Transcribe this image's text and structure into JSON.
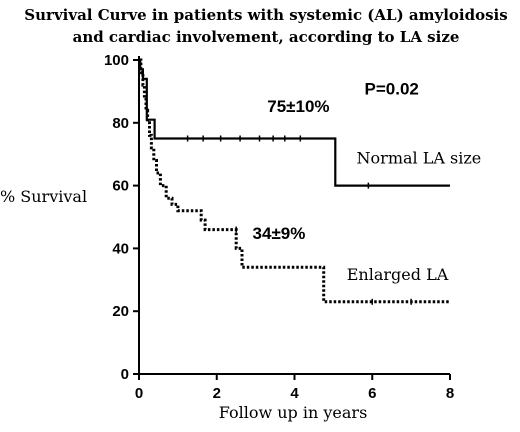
{
  "chart_data": {
    "type": "line",
    "title": "Survival Curve in patients with systemic (AL) amyloidosis",
    "subtitle": "and cardiac involvement, according to LA size",
    "xlabel": "Follow up in years",
    "ylabel": "% Survival",
    "xlim": [
      0,
      8
    ],
    "ylim": [
      0,
      100
    ],
    "xticks": [
      0,
      2,
      4,
      6,
      8
    ],
    "yticks": [
      0,
      20,
      40,
      60,
      80,
      100
    ],
    "grid": false,
    "series": [
      {
        "name": "Normal LA size",
        "style": "solid",
        "color": "#000000",
        "x": [
          0,
          0.03,
          0.03,
          0.1,
          0.1,
          0.2,
          0.2,
          0.4,
          0.4,
          5.05,
          5.05,
          8
        ],
        "y": [
          100,
          100,
          97,
          97,
          94,
          94,
          81,
          81,
          75,
          75,
          60,
          60
        ],
        "censor_x": [
          1.25,
          1.65,
          2.1,
          2.6,
          3.1,
          3.45,
          3.75,
          4.15,
          5.9
        ],
        "censor_y": [
          75,
          75,
          75,
          75,
          75,
          75,
          75,
          75,
          60
        ]
      },
      {
        "name": "Enlarged LA",
        "style": "dotted",
        "color": "#000000",
        "x": [
          0,
          0.05,
          0.05,
          0.1,
          0.1,
          0.14,
          0.14,
          0.18,
          0.18,
          0.22,
          0.22,
          0.27,
          0.27,
          0.32,
          0.32,
          0.38,
          0.38,
          0.45,
          0.45,
          0.55,
          0.55,
          0.7,
          0.7,
          0.85,
          0.85,
          1.0,
          1.0,
          1.6,
          1.6,
          1.7,
          1.7,
          2.0,
          2.0,
          2.5,
          2.5,
          2.65,
          2.65,
          2.75,
          2.75,
          4.75,
          4.75,
          8
        ],
        "y": [
          100,
          100,
          96,
          96,
          92,
          92,
          88,
          88,
          84,
          84,
          80,
          80,
          76,
          76,
          72,
          72,
          68,
          68,
          64,
          64,
          60,
          60,
          56,
          56,
          54,
          54,
          52,
          52,
          49,
          49,
          46,
          46,
          46,
          46,
          40,
          40,
          34,
          34,
          34,
          34,
          23,
          23
        ],
        "censor_x": [
          2.5,
          6.0,
          7.0
        ],
        "censor_y": [
          46,
          23,
          23
        ]
      }
    ],
    "annotations": [
      {
        "text": "75±10%",
        "x": 4.1,
        "y": 83.5
      },
      {
        "text": "P=0.02",
        "x": 6.5,
        "y": 89
      },
      {
        "text": "34±9%",
        "x": 3.6,
        "y": 43
      }
    ],
    "series_labels": [
      {
        "text": "Normal LA size",
        "x": 7.2,
        "y": 67
      },
      {
        "text": "Enlarged LA",
        "x": 6.65,
        "y": 30
      }
    ]
  }
}
